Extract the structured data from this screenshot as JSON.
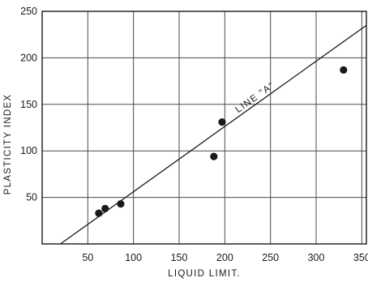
{
  "chart_data": {
    "type": "scatter",
    "title": "",
    "xlabel": "LIQUID LIMIT.",
    "ylabel": "PLASTICITY INDEX",
    "xlim": [
      0,
      355
    ],
    "ylim": [
      0,
      250
    ],
    "xticks": [
      50,
      100,
      150,
      200,
      250,
      300,
      350
    ],
    "yticks": [
      50,
      100,
      150,
      200,
      250
    ],
    "xtick_labels": [
      "50",
      "100",
      "150",
      "200",
      "250",
      "300",
      "350"
    ],
    "ytick_labels": [
      "50",
      "100",
      "150",
      "200",
      "250"
    ],
    "grid": true,
    "series": [
      {
        "marker": "filled-circle",
        "points": [
          {
            "x": 62,
            "y": 33
          },
          {
            "x": 69,
            "y": 38
          },
          {
            "x": 86,
            "y": 43
          },
          {
            "x": 188,
            "y": 94
          },
          {
            "x": 197,
            "y": 131
          },
          {
            "x": 330,
            "y": 187
          }
        ]
      }
    ],
    "lines": [
      {
        "label": "LINE \"A\"",
        "points": [
          {
            "x": 20,
            "y": 0
          },
          {
            "x": 355,
            "y": 235
          }
        ]
      }
    ],
    "annotations": [
      {
        "text": "LINE \"A\"",
        "x": 235,
        "y": 155
      }
    ]
  },
  "colors": {
    "ink": "#1a1a1a",
    "grid": "#4a4a4a",
    "background": "#ffffff"
  }
}
